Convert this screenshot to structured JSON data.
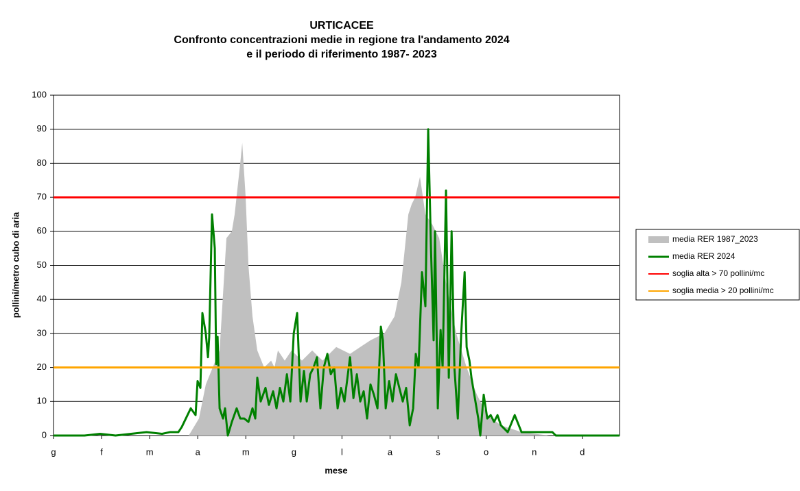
{
  "chart_data": {
    "type": "line",
    "title": [
      "URTICACEE",
      "Confronto concentrazioni medie in regione tra l'andamento 2024",
      "e il periodo di riferimento 1987- 2023"
    ],
    "xlabel": "mese",
    "ylabel": "pollini/metro cubo di aria",
    "xlim": [
      0,
      365
    ],
    "ylim": [
      0,
      100
    ],
    "xticks": [
      {
        "value": 0,
        "label": "g"
      },
      {
        "value": 31,
        "label": "f"
      },
      {
        "value": 62,
        "label": "m"
      },
      {
        "value": 93,
        "label": "a"
      },
      {
        "value": 124,
        "label": "m"
      },
      {
        "value": 155,
        "label": "g"
      },
      {
        "value": 186,
        "label": "l"
      },
      {
        "value": 217,
        "label": "a"
      },
      {
        "value": 248,
        "label": "s"
      },
      {
        "value": 279,
        "label": "o"
      },
      {
        "value": 310,
        "label": "n"
      },
      {
        "value": 341,
        "label": "d"
      }
    ],
    "yticks": [
      0,
      10,
      20,
      30,
      40,
      50,
      60,
      70,
      80,
      90,
      100
    ],
    "grid": true,
    "legend": "right",
    "series": [
      {
        "name": "media RER 1987_2023",
        "color": "#c0c0c0",
        "kind": "area",
        "x": [
          0,
          80.5,
          87.2,
          93.8,
          98.2,
          107.1,
          111.5,
          115.0,
          116.8,
          120.4,
          121.7,
          123.9,
          125.7,
          128.3,
          131.4,
          135.8,
          140.3,
          142.5,
          144.7,
          149.1,
          153.5,
          160.2,
          166.8,
          173.5,
          182.3,
          191.2,
          197.8,
          204.4,
          213.3,
          219.9,
          224.3,
          228.8,
          231.0,
          233.2,
          236.3,
          239.8,
          244.3,
          248.7,
          253.1,
          259.7,
          266.4,
          273.0,
          279.7,
          288.5,
          301.8,
          319.5,
          365
        ],
        "values": [
          0,
          0,
          0,
          5,
          15,
          25,
          58,
          60,
          65,
          80,
          86,
          70,
          50,
          35,
          25,
          20,
          22,
          20,
          25,
          22,
          25,
          22,
          25,
          22,
          26,
          24,
          26,
          28,
          30,
          35,
          45,
          65,
          68,
          70,
          76,
          65,
          62,
          58,
          45,
          30,
          20,
          12,
          6,
          3,
          1,
          0,
          0
        ]
      },
      {
        "name": "media RER 2024",
        "color": "#008000",
        "kind": "line",
        "x": [
          0,
          20,
          30,
          40,
          50,
          60,
          70,
          75,
          80.5,
          82.7,
          88.5,
          91.6,
          92.9,
          94.7,
          96.0,
          98.2,
          99.6,
          100.4,
          102.2,
          104.0,
          104.9,
          105.8,
          107.1,
          109.3,
          110.6,
          112.4,
          115.0,
          118.1,
          120.4,
          123.0,
          125.7,
          128.3,
          130.1,
          131.4,
          133.6,
          136.7,
          138.9,
          141.6,
          143.8,
          146.0,
          148.2,
          150.5,
          152.7,
          154.9,
          157.1,
          159.3,
          161.5,
          163.3,
          165.5,
          167.7,
          169.9,
          172.1,
          174.3,
          176.6,
          178.8,
          181.0,
          183.2,
          185.4,
          187.6,
          191.2,
          193.4,
          195.6,
          197.8,
          200.0,
          202.2,
          204.4,
          206.6,
          208.9,
          211.1,
          212.4,
          214.2,
          216.4,
          218.6,
          220.8,
          223.0,
          225.2,
          227.4,
          229.7,
          231.9,
          233.6,
          235.4,
          237.6,
          239.8,
          241.6,
          243.4,
          245.1,
          246.0,
          247.8,
          249.6,
          250.9,
          253.1,
          254.9,
          256.7,
          258.5,
          260.7,
          262.9,
          265.1,
          266.4,
          268.2,
          269.5,
          271.7,
          273.9,
          275.2,
          277.4,
          279.7,
          281.9,
          284.1,
          286.3,
          288.5,
          292.9,
          297.4,
          301.8,
          310.6,
          321.7,
          323.9,
          332.8,
          365
        ],
        "values": [
          0,
          0,
          0.5,
          0,
          0.5,
          1,
          0.5,
          1,
          1,
          2.5,
          8,
          6,
          16,
          14,
          36,
          30,
          23,
          29,
          65,
          55,
          21,
          29,
          8,
          5,
          8,
          0,
          4,
          8,
          5,
          5,
          4,
          8,
          5,
          17,
          10,
          14,
          9,
          13,
          8,
          14,
          10,
          18,
          10,
          30,
          36,
          10,
          19,
          10,
          18,
          20,
          23,
          8,
          20,
          24,
          18,
          20,
          8,
          14,
          10,
          23,
          11,
          18,
          10,
          13,
          5,
          15,
          12,
          8,
          32,
          28,
          8,
          16,
          10,
          18,
          14,
          10,
          14,
          3,
          8,
          24,
          20,
          48,
          38,
          90,
          55,
          28,
          60,
          8,
          31,
          20,
          72,
          17,
          60,
          20,
          5,
          30,
          48,
          26,
          22,
          17,
          11,
          5,
          0,
          12,
          5,
          6,
          4,
          6,
          3,
          1,
          6,
          1,
          1,
          1,
          0,
          0,
          0
        ]
      },
      {
        "name": "soglia alta > 70 pollini/mc",
        "color": "#ff0000",
        "kind": "hline",
        "value": 70
      },
      {
        "name": "soglia media > 20 pollini/mc",
        "color": "#ffa500",
        "kind": "hline",
        "value": 20
      }
    ]
  }
}
